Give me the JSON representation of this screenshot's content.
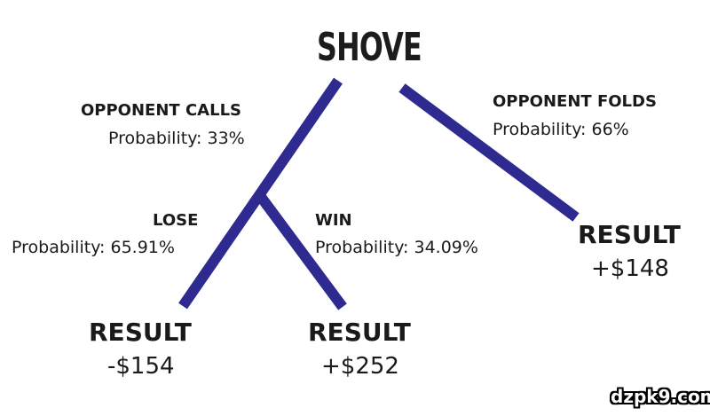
{
  "title": "SHOVE",
  "line_color": "#2e2a8f",
  "branches": {
    "calls": {
      "label": "OPPONENT CALLS",
      "probability": "Probability: 33%"
    },
    "folds": {
      "label": "OPPONENT FOLDS",
      "probability": "Probability: 66%"
    },
    "lose": {
      "label": "LOSE",
      "probability": "Probability:  65.91%"
    },
    "win": {
      "label": "WIN",
      "probability": "Probability: 34.09%"
    }
  },
  "results": {
    "lose": {
      "label": "RESULT",
      "amount": "-$154"
    },
    "win": {
      "label": "RESULT",
      "amount": "+$252"
    },
    "folds": {
      "label": "RESULT",
      "amount": "+$148"
    }
  },
  "watermark": "dzpk9.com"
}
